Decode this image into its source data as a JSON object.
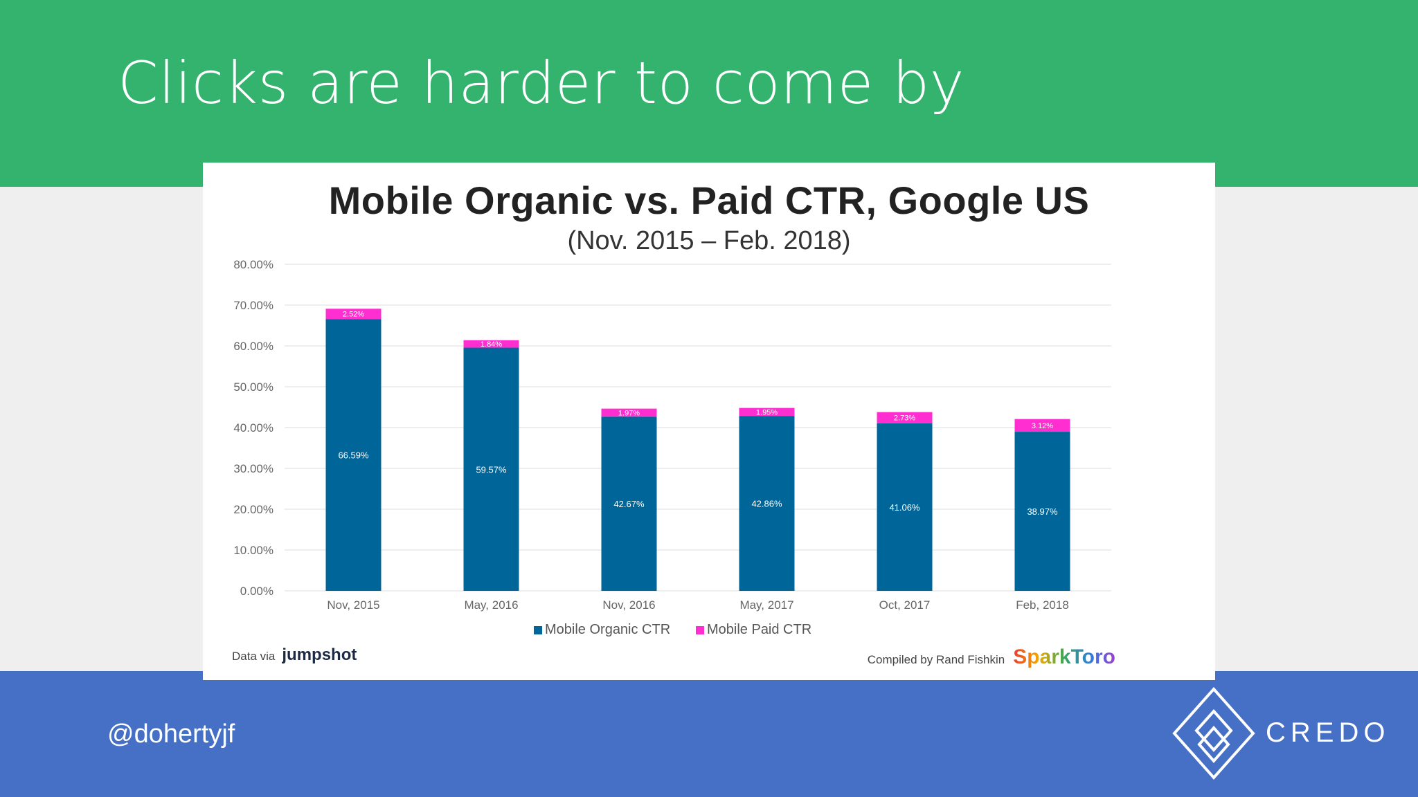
{
  "slide": {
    "title": "Clicks are harder to come by",
    "handle": "@dohertyjf",
    "logo_text": "CREDO"
  },
  "colors": {
    "top_band": "#33b36d",
    "bottom_band": "#4670c5",
    "organic": "#006699",
    "paid": "#ff2ed0"
  },
  "chart_data": {
    "type": "bar",
    "stacked": true,
    "title": "Mobile Organic vs. Paid CTR, Google US",
    "subtitle": "(Nov. 2015 – Feb. 2018)",
    "xlabel": "",
    "ylabel": "",
    "ylim": [
      0,
      80
    ],
    "yticks": [
      "0.00%",
      "10.00%",
      "20.00%",
      "30.00%",
      "40.00%",
      "50.00%",
      "60.00%",
      "70.00%",
      "80.00%"
    ],
    "grid": true,
    "categories": [
      "Nov, 2015",
      "May, 2016",
      "Nov, 2016",
      "May, 2017",
      "Oct, 2017",
      "Feb, 2018"
    ],
    "series": [
      {
        "name": "Mobile Organic CTR",
        "values": [
          66.59,
          59.57,
          42.67,
          42.86,
          41.06,
          38.97
        ],
        "labels": [
          "66.59%",
          "59.57%",
          "42.67%",
          "42.86%",
          "41.06%",
          "38.97%"
        ]
      },
      {
        "name": "Mobile Paid CTR",
        "values": [
          2.52,
          1.84,
          1.97,
          1.95,
          2.73,
          3.12
        ],
        "labels": [
          "2.52%",
          "1.84%",
          "1.97%",
          "1.95%",
          "2.73%",
          "3.12%"
        ]
      }
    ],
    "legend_position": "bottom"
  },
  "footer": {
    "data_via": "Data via",
    "data_source": "jumpshot",
    "compiled_by": "Compiled by Rand Fishkin",
    "brand": "SparkToro"
  }
}
